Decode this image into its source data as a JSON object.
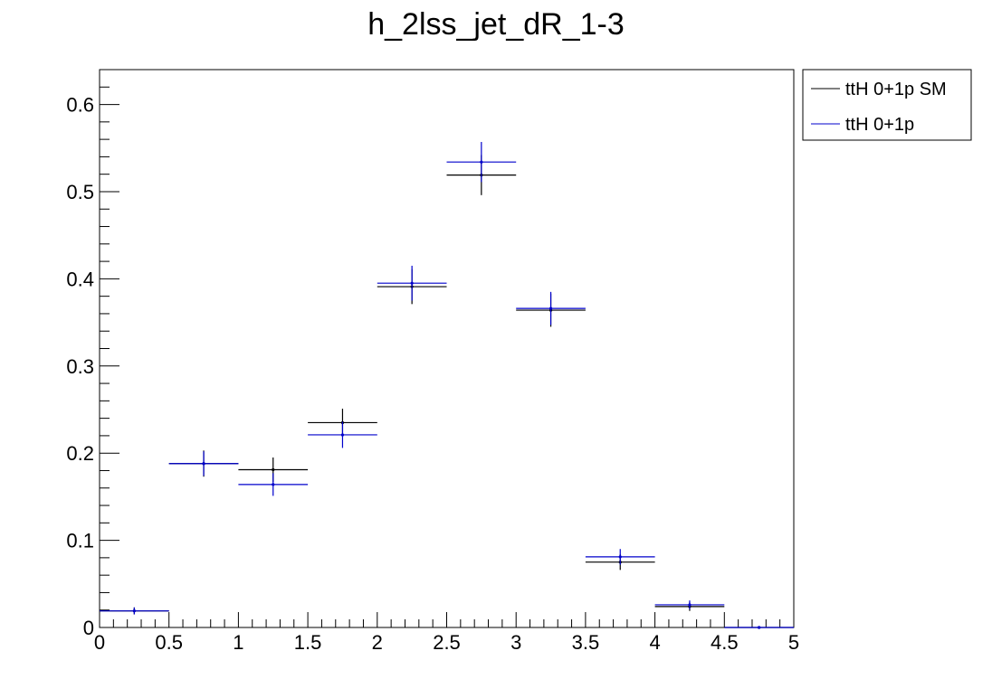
{
  "chart_data": {
    "type": "scatter",
    "title": "h_2lss_jet_dR_1-3",
    "xlabel": "",
    "ylabel": "",
    "xlim": [
      0,
      5
    ],
    "ylim": [
      0,
      0.64
    ],
    "x_ticks": [
      "0",
      "0.5",
      "1",
      "1.5",
      "2",
      "2.5",
      "3",
      "3.5",
      "4",
      "4.5",
      "5"
    ],
    "y_ticks": [
      "0",
      "0.1",
      "0.2",
      "0.3",
      "0.4",
      "0.5",
      "0.6"
    ],
    "legend_position": "top-right, outside plot",
    "series": [
      {
        "name": "ttH 0+1p SM",
        "color": "#000000",
        "bins": [
          {
            "x_low": 0.0,
            "x_high": 0.5,
            "y": 0.019,
            "err": 0.004
          },
          {
            "x_low": 0.5,
            "x_high": 1.0,
            "y": 0.188,
            "err": 0.015
          },
          {
            "x_low": 1.0,
            "x_high": 1.5,
            "y": 0.181,
            "err": 0.014
          },
          {
            "x_low": 1.5,
            "x_high": 2.0,
            "y": 0.235,
            "err": 0.016
          },
          {
            "x_low": 2.0,
            "x_high": 2.5,
            "y": 0.391,
            "err": 0.02
          },
          {
            "x_low": 2.5,
            "x_high": 3.0,
            "y": 0.519,
            "err": 0.023
          },
          {
            "x_low": 3.0,
            "x_high": 3.5,
            "y": 0.364,
            "err": 0.019
          },
          {
            "x_low": 3.5,
            "x_high": 4.0,
            "y": 0.075,
            "err": 0.009
          },
          {
            "x_low": 4.0,
            "x_high": 4.5,
            "y": 0.024,
            "err": 0.005
          },
          {
            "x_low": 4.5,
            "x_high": 5.0,
            "y": 0.0,
            "err": 0.001
          }
        ]
      },
      {
        "name": "ttH 0+1p",
        "color": "#0000cc",
        "bins": [
          {
            "x_low": 0.0,
            "x_high": 0.5,
            "y": 0.019,
            "err": 0.004
          },
          {
            "x_low": 0.5,
            "x_high": 1.0,
            "y": 0.188,
            "err": 0.014
          },
          {
            "x_low": 1.0,
            "x_high": 1.5,
            "y": 0.164,
            "err": 0.013
          },
          {
            "x_low": 1.5,
            "x_high": 2.0,
            "y": 0.221,
            "err": 0.015
          },
          {
            "x_low": 2.0,
            "x_high": 2.5,
            "y": 0.395,
            "err": 0.02
          },
          {
            "x_low": 2.5,
            "x_high": 3.0,
            "y": 0.534,
            "err": 0.023
          },
          {
            "x_low": 3.0,
            "x_high": 3.5,
            "y": 0.366,
            "err": 0.019
          },
          {
            "x_low": 3.5,
            "x_high": 4.0,
            "y": 0.081,
            "err": 0.009
          },
          {
            "x_low": 4.0,
            "x_high": 4.5,
            "y": 0.026,
            "err": 0.005
          },
          {
            "x_low": 4.5,
            "x_high": 5.0,
            "y": 0.0,
            "err": 0.001
          }
        ]
      }
    ]
  }
}
